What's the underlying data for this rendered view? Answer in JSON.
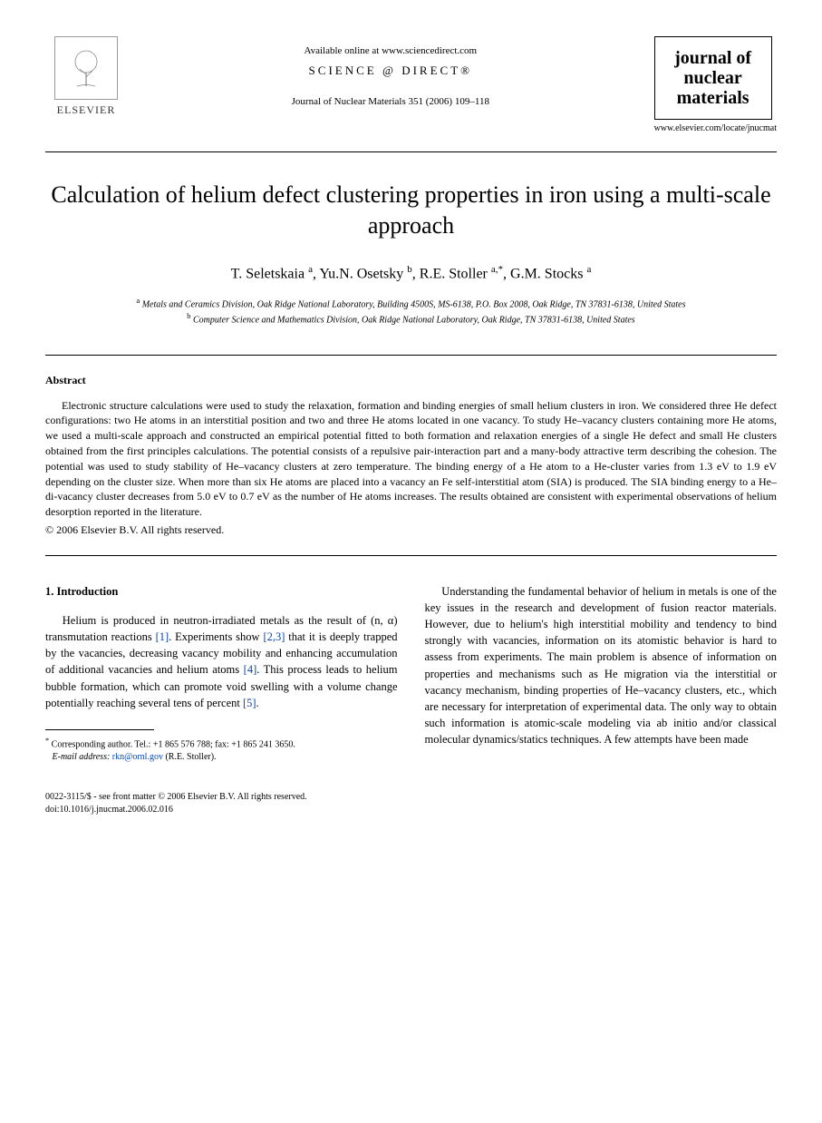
{
  "header": {
    "elsevier_label": "ELSEVIER",
    "available_text": "Available online at www.sciencedirect.com",
    "science_direct": "SCIENCE @ DIRECT®",
    "journal_reference": "Journal of Nuclear Materials 351 (2006) 109–118",
    "journal_box_line1": "journal of",
    "journal_box_line2": "nuclear",
    "journal_box_line3": "materials",
    "journal_url": "www.elsevier.com/locate/jnucmat"
  },
  "title": "Calculation of helium defect clustering properties in iron using a multi-scale approach",
  "authors_html": "T. Seletskaia <sup>a</sup>, Yu.N. Osetsky <sup>b</sup>, R.E. Stoller <sup>a,*</sup>, G.M. Stocks <sup>a</sup>",
  "affiliations": {
    "a": "Metals and Ceramics Division, Oak Ridge National Laboratory, Building 4500S, MS-6138, P.O. Box 2008, Oak Ridge, TN 37831-6138, United States",
    "b": "Computer Science and Mathematics Division, Oak Ridge National Laboratory, Oak Ridge, TN 37831-6138, United States"
  },
  "abstract": {
    "label": "Abstract",
    "text": "Electronic structure calculations were used to study the relaxation, formation and binding energies of small helium clusters in iron. We considered three He defect configurations: two He atoms in an interstitial position and two and three He atoms located in one vacancy. To study He–vacancy clusters containing more He atoms, we used a multi-scale approach and constructed an empirical potential fitted to both formation and relaxation energies of a single He defect and small He clusters obtained from the first principles calculations. The potential consists of a repulsive pair-interaction part and a many-body attractive term describing the cohesion. The potential was used to study stability of He–vacancy clusters at zero temperature. The binding energy of a He atom to a He-cluster varies from 1.3 eV to 1.9 eV depending on the cluster size. When more than six He atoms are placed into a vacancy an Fe self-interstitial atom (SIA) is produced. The SIA binding energy to a He–di-vacancy cluster decreases from 5.0 eV to 0.7 eV as the number of He atoms increases. The results obtained are consistent with experimental observations of helium desorption reported in the literature.",
    "copyright": "© 2006 Elsevier B.V. All rights reserved."
  },
  "section1": {
    "heading": "1. Introduction",
    "para1_parts": [
      "Helium is produced in neutron-irradiated metals as the result of (n, α) transmutation reactions ",
      "[1]",
      ". Experiments show ",
      "[2,3]",
      " that it is deeply trapped by the vacancies, decreasing vacancy mobility and enhancing accumulation of additional vacancies and helium atoms ",
      "[4]",
      ". This process leads to helium bubble formation, which can promote void swelling with a volume change potentially reaching several tens of percent ",
      "[5]",
      "."
    ],
    "para2": "Understanding the fundamental behavior of helium in metals is one of the key issues in the research and development of fusion reactor materials. However, due to helium's high interstitial mobility and tendency to bind strongly with vacancies, information on its atomistic behavior is hard to assess from experiments. The main problem is absence of information on properties and mechanisms such as He migration via the interstitial or vacancy mechanism, binding properties of He–vacancy clusters, etc., which are necessary for interpretation of experimental data. The only way to obtain such information is atomic-scale modeling via ab initio and/or classical molecular dynamics/statics techniques. A few attempts have been made"
  },
  "footnotes": {
    "corresponding": "Corresponding author. Tel.: +1 865 576 788; fax: +1 865 241 3650.",
    "email_label": "E-mail address:",
    "email": "rkn@ornl.gov",
    "email_suffix": "(R.E. Stoller)."
  },
  "footer": {
    "line1": "0022-3115/$ - see front matter © 2006 Elsevier B.V. All rights reserved.",
    "line2": "doi:10.1016/j.jnucmat.2006.02.016"
  },
  "colors": {
    "link": "#0645ad",
    "text": "#000000",
    "background": "#ffffff"
  }
}
